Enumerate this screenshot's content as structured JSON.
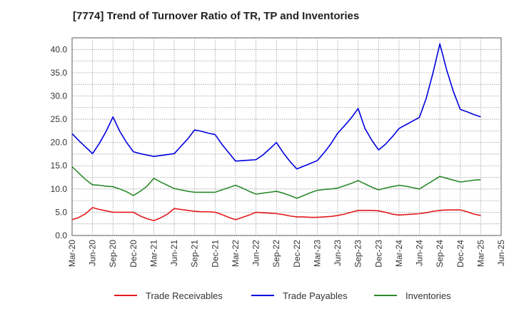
{
  "chart_data": {
    "type": "line",
    "title": "[7774]  Trend of Turnover Ratio of TR, TP and Inventories",
    "xlabel": "",
    "ylabel": "",
    "ylim": [
      0,
      42.5
    ],
    "yticks": [
      "0.0",
      "5.0",
      "10.0",
      "15.0",
      "20.0",
      "25.0",
      "30.0",
      "35.0",
      "40.0"
    ],
    "ytick_values": [
      0,
      5,
      10,
      15,
      20,
      25,
      30,
      35,
      40
    ],
    "xtick_labels": [
      "Mar-20",
      "Jun-20",
      "Sep-20",
      "Dec-20",
      "Mar-21",
      "Jun-21",
      "Sep-21",
      "Dec-21",
      "Mar-22",
      "Jun-22",
      "Sep-22",
      "Dec-22",
      "Mar-23",
      "Jun-23",
      "Sep-23",
      "Dec-23",
      "Mar-24",
      "Jun-24",
      "Sep-24",
      "Dec-24",
      "Mar-25",
      "Jun-25"
    ],
    "grid": true,
    "legend_position": "bottom",
    "x": [
      "2020-03",
      "2020-04",
      "2020-05",
      "2020-06",
      "2020-07",
      "2020-08",
      "2020-09",
      "2020-10",
      "2020-11",
      "2020-12",
      "2021-01",
      "2021-02",
      "2021-03",
      "2021-04",
      "2021-05",
      "2021-06",
      "2021-07",
      "2021-08",
      "2021-09",
      "2021-10",
      "2021-11",
      "2021-12",
      "2022-01",
      "2022-02",
      "2022-03",
      "2022-04",
      "2022-05",
      "2022-06",
      "2022-07",
      "2022-08",
      "2022-09",
      "2022-10",
      "2022-11",
      "2022-12",
      "2023-01",
      "2023-02",
      "2023-03",
      "2023-04",
      "2023-05",
      "2023-06",
      "2023-07",
      "2023-08",
      "2023-09",
      "2023-10",
      "2023-11",
      "2023-12",
      "2024-01",
      "2024-02",
      "2024-03",
      "2024-04",
      "2024-05",
      "2024-06",
      "2024-07",
      "2024-08",
      "2024-09",
      "2024-10",
      "2024-11",
      "2024-12",
      "2025-01",
      "2025-02",
      "2025-03"
    ],
    "series": [
      {
        "name": "Trade Receivables",
        "color": "#e31a1c",
        "values": [
          3.4,
          3.9,
          4.7,
          6.0,
          5.6,
          5.3,
          5.0,
          5.0,
          5.0,
          5.0,
          4.2,
          3.6,
          3.2,
          3.8,
          4.6,
          5.8,
          5.6,
          5.4,
          5.2,
          5.1,
          5.1,
          5.0,
          4.5,
          3.9,
          3.4,
          3.9,
          4.4,
          5.0,
          4.9,
          4.8,
          4.7,
          4.5,
          4.2,
          4.0,
          4.0,
          3.9,
          3.9,
          4.0,
          4.1,
          4.3,
          4.6,
          5.0,
          5.4,
          5.4,
          5.4,
          5.3,
          5.0,
          4.6,
          4.4,
          4.5,
          4.6,
          4.7,
          4.9,
          5.2,
          5.4,
          5.5,
          5.5,
          5.5,
          5.1,
          4.6,
          4.3
        ]
      },
      {
        "name": "Trade Payables",
        "color": "#0000e0",
        "values": [
          21.9,
          20.4,
          19.0,
          17.6,
          19.8,
          22.4,
          25.5,
          22.4,
          20.0,
          18.0,
          17.6,
          17.3,
          17.0,
          17.2,
          17.4,
          17.6,
          19.2,
          20.8,
          22.7,
          22.4,
          22.0,
          21.7,
          19.6,
          17.8,
          16.0,
          16.1,
          16.2,
          16.3,
          17.3,
          18.6,
          20.0,
          17.8,
          15.9,
          14.3,
          14.9,
          15.5,
          16.1,
          17.8,
          19.7,
          22.0,
          23.6,
          25.3,
          27.3,
          23.0,
          20.5,
          18.4,
          19.6,
          21.2,
          23.0,
          23.8,
          24.6,
          25.4,
          29.5,
          35.0,
          41.2,
          35.6,
          30.9,
          27.1,
          26.6,
          26.0,
          25.5
        ]
      },
      {
        "name": "Inventories",
        "color": "#2a8a2a",
        "values": [
          14.8,
          13.4,
          12.0,
          10.9,
          10.8,
          10.6,
          10.5,
          10.0,
          9.4,
          8.6,
          9.5,
          10.6,
          12.3,
          11.5,
          10.8,
          10.1,
          9.8,
          9.5,
          9.3,
          9.3,
          9.3,
          9.3,
          9.8,
          10.3,
          10.8,
          10.2,
          9.5,
          8.9,
          9.1,
          9.3,
          9.5,
          9.1,
          8.6,
          8.0,
          8.6,
          9.2,
          9.7,
          9.9,
          10.0,
          10.2,
          10.7,
          11.2,
          11.8,
          11.1,
          10.4,
          9.8,
          10.2,
          10.5,
          10.8,
          10.6,
          10.3,
          10.0,
          10.9,
          11.8,
          12.7,
          12.3,
          11.9,
          11.5,
          11.7,
          11.9,
          12.0
        ]
      }
    ]
  }
}
